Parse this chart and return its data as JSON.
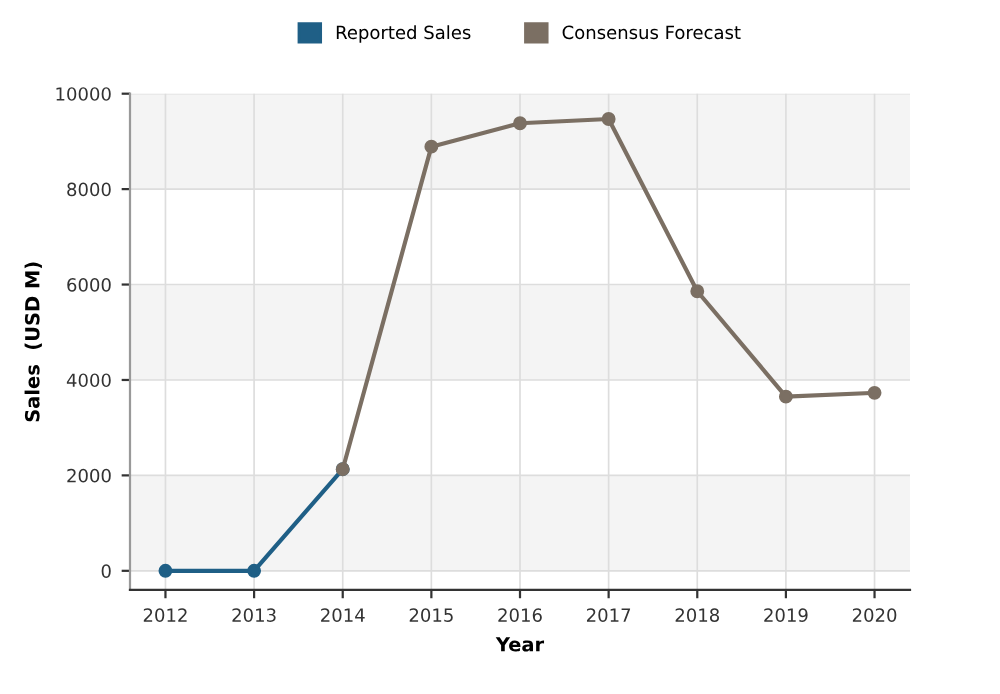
{
  "chart_data": {
    "type": "line",
    "xlabel": "Year",
    "ylabel": "Sales  (USD M)",
    "xlim": [
      2011.6,
      2020.4
    ],
    "xticks": [
      2012,
      2013,
      2014,
      2015,
      2016,
      2017,
      2018,
      2019,
      2020
    ],
    "ylim": [
      -400,
      10000
    ],
    "yticks": [
      0,
      2000,
      4000,
      6000,
      8000,
      10000
    ],
    "grid": true,
    "legend": "top",
    "marker": "circle",
    "line_style": "solid",
    "bands": [
      {
        "axis": "y",
        "from": 0,
        "to": 2000,
        "color": "#f4f4f4"
      },
      {
        "axis": "y",
        "from": 4000,
        "to": 6000,
        "color": "#f4f4f4"
      },
      {
        "axis": "y",
        "from": 8000,
        "to": 10000,
        "color": "#f4f4f4"
      }
    ],
    "series": [
      {
        "name": "Reported Sales",
        "color": "#1f5f86",
        "x": [
          2012,
          2013,
          2014
        ],
        "values": [
          0,
          0,
          2130
        ]
      },
      {
        "name": "Consensus Forecast",
        "color": "#7b6f63",
        "x": [
          2014,
          2015,
          2016,
          2017,
          2018,
          2019,
          2020
        ],
        "values": [
          2130,
          8890,
          9380,
          9470,
          5860,
          3650,
          3730
        ]
      }
    ]
  }
}
